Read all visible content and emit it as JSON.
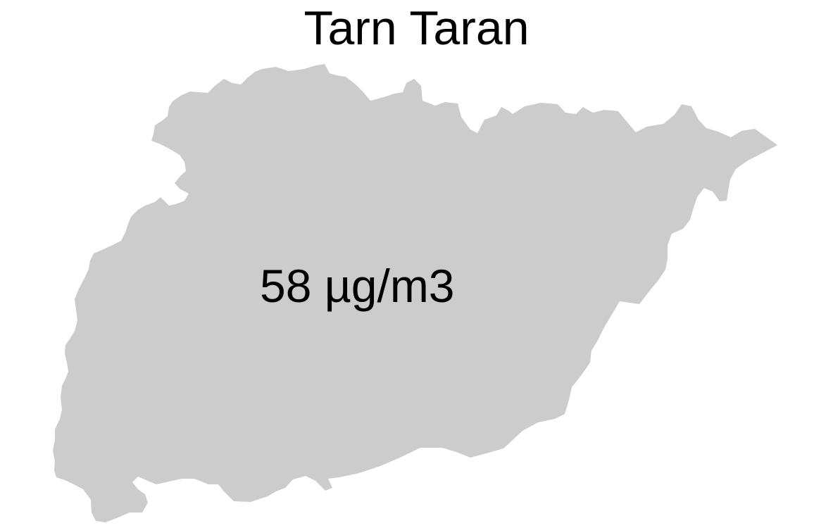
{
  "map": {
    "title": "Tarn Taran",
    "value_label": "58 µg/m3",
    "region_fill": "#cccccc",
    "background": "#ffffff"
  }
}
